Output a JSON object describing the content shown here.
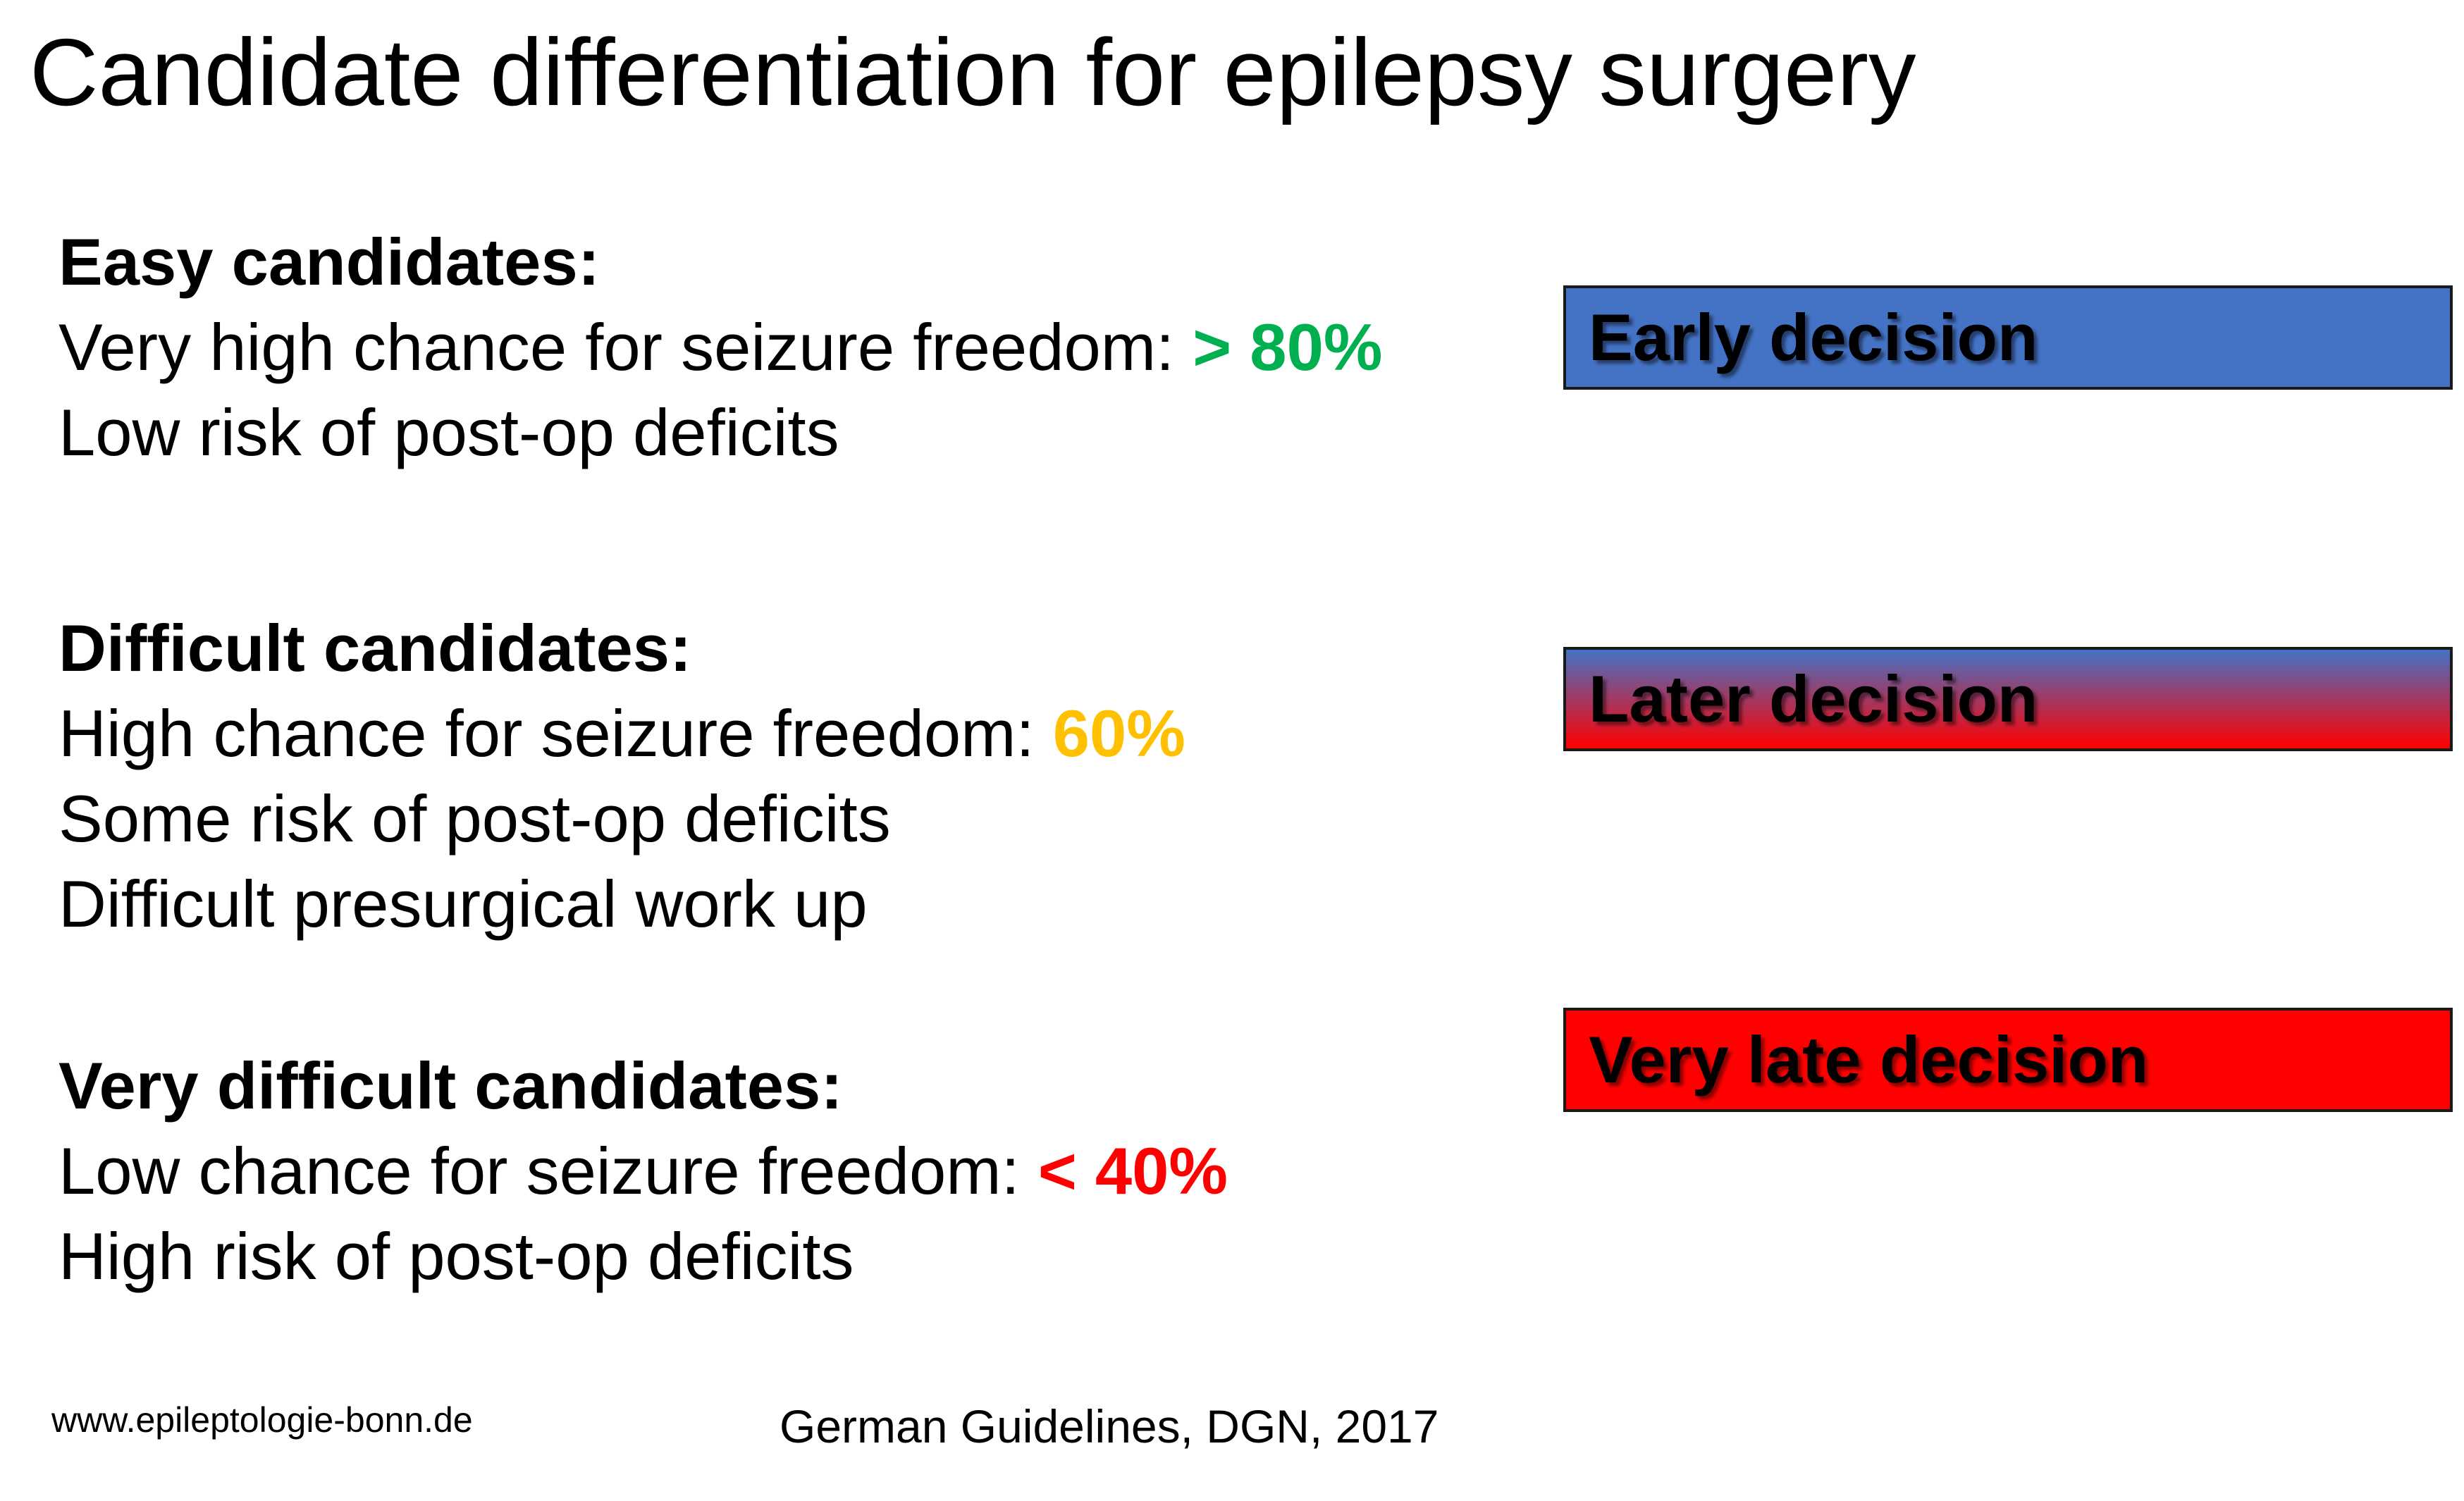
{
  "title": "Candidate differentiation for epilepsy surgery",
  "groups": [
    {
      "heading": "Easy candidates:",
      "chance_label": "Very high chance for seizure freedom: ",
      "chance_value": "> 80%",
      "chance_color": "#00b050",
      "lines": [
        "Low risk of post-op deficits"
      ]
    },
    {
      "heading": "Difficult candidates:",
      "chance_label": "High chance for seizure freedom: ",
      "chance_value": "60%",
      "chance_color": "#ffc000",
      "lines": [
        "Some risk of post-op deficits",
        "Difficult presurgical work up"
      ]
    },
    {
      "heading": "Very difficult candidates:",
      "chance_label": "Low chance for seizure freedom: ",
      "chance_value": "< 40%",
      "chance_color": "#ff0000",
      "lines": [
        "High risk of post-op deficits"
      ]
    }
  ],
  "decisions": [
    {
      "label": "Early decision",
      "fill": "#4472c4"
    },
    {
      "label": "Later decision",
      "fill_top": "#4472c4",
      "fill_bottom": "#ff0000"
    },
    {
      "label": "Very late decision",
      "fill": "#ff0000"
    }
  ],
  "footer": {
    "website": "www.epileptologie-bonn.de",
    "source": "German Guidelines, DGN, 2017"
  }
}
